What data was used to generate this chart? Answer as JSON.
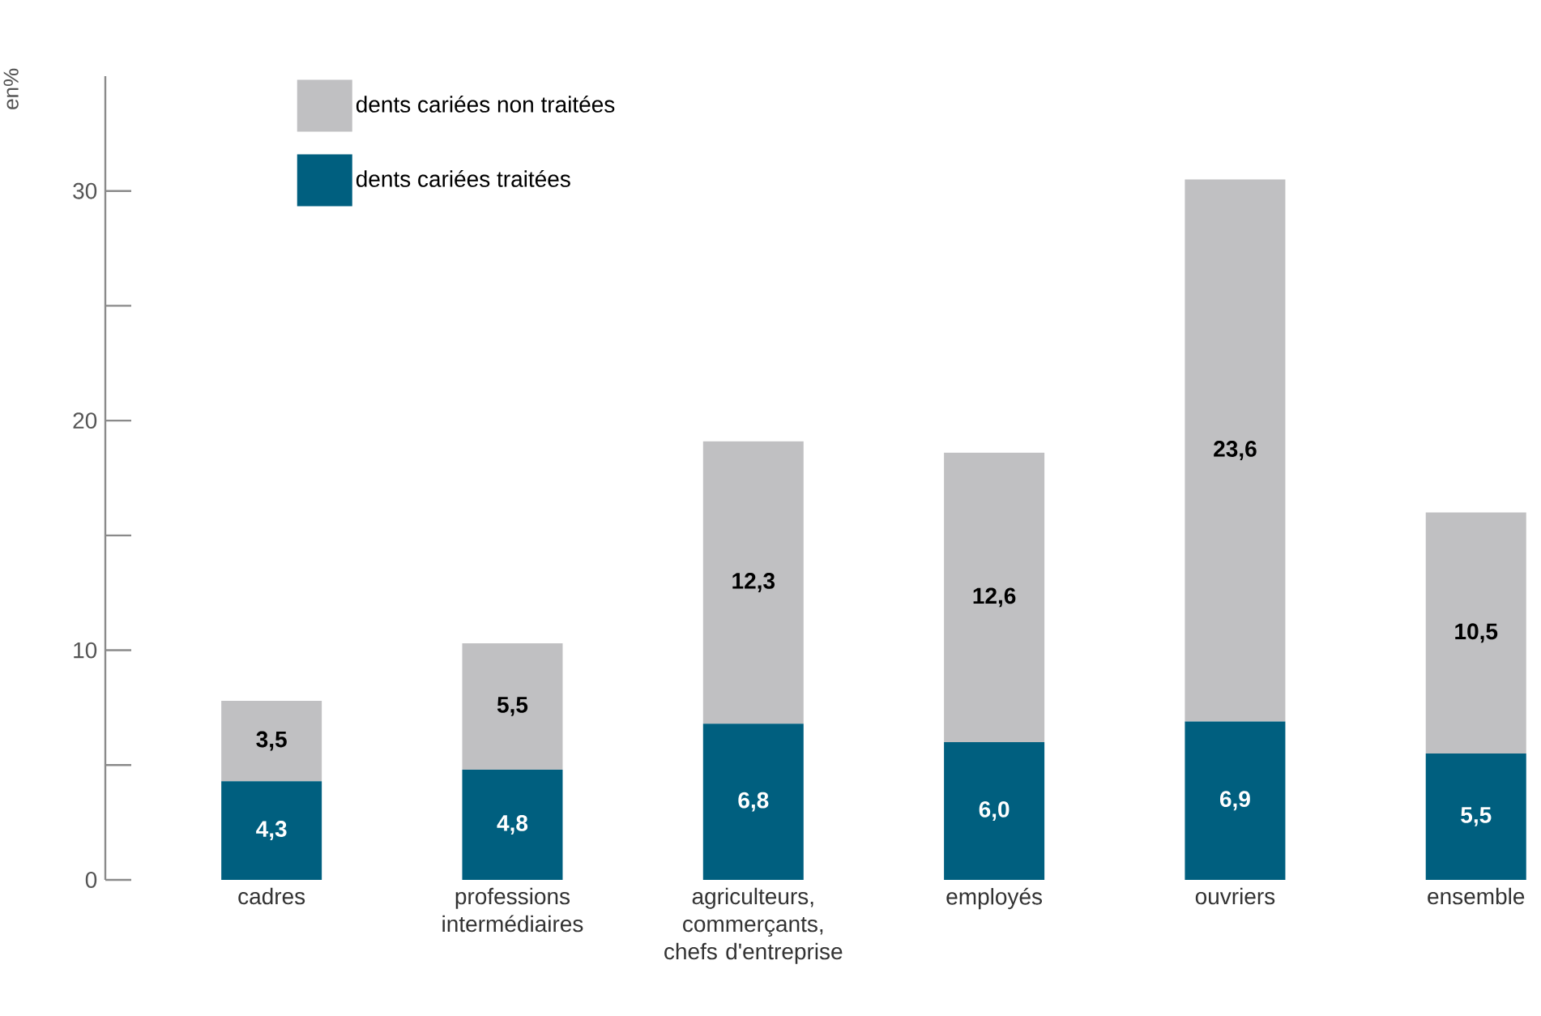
{
  "chart_data": {
    "type": "bar",
    "stacked": true,
    "ylabel": "en%",
    "categories": [
      "cadres",
      "professions intermédiaires",
      "agriculteurs, commerçants, chefs d'entreprise",
      "employés",
      "ouvriers",
      "ensemble"
    ],
    "series": [
      {
        "name": "dents cariées traitées",
        "color": "#005f7f",
        "values": [
          4.3,
          4.8,
          6.8,
          6.0,
          6.9,
          5.5
        ],
        "value_labels": [
          "4,3",
          "4,8",
          "6,8",
          "6,0",
          "6,9",
          "5,5"
        ]
      },
      {
        "name": "dents cariées non traitées",
        "color": "#c0c0c2",
        "values": [
          3.5,
          5.5,
          12.3,
          12.6,
          23.6,
          10.5
        ],
        "value_labels": [
          "3,5",
          "5,5",
          "12,3",
          "12,6",
          "23,6",
          "10,5"
        ]
      }
    ],
    "ylim": [
      0,
      35
    ],
    "yticks": [
      0,
      10,
      20,
      30
    ],
    "legend": "top left",
    "grid": false
  }
}
